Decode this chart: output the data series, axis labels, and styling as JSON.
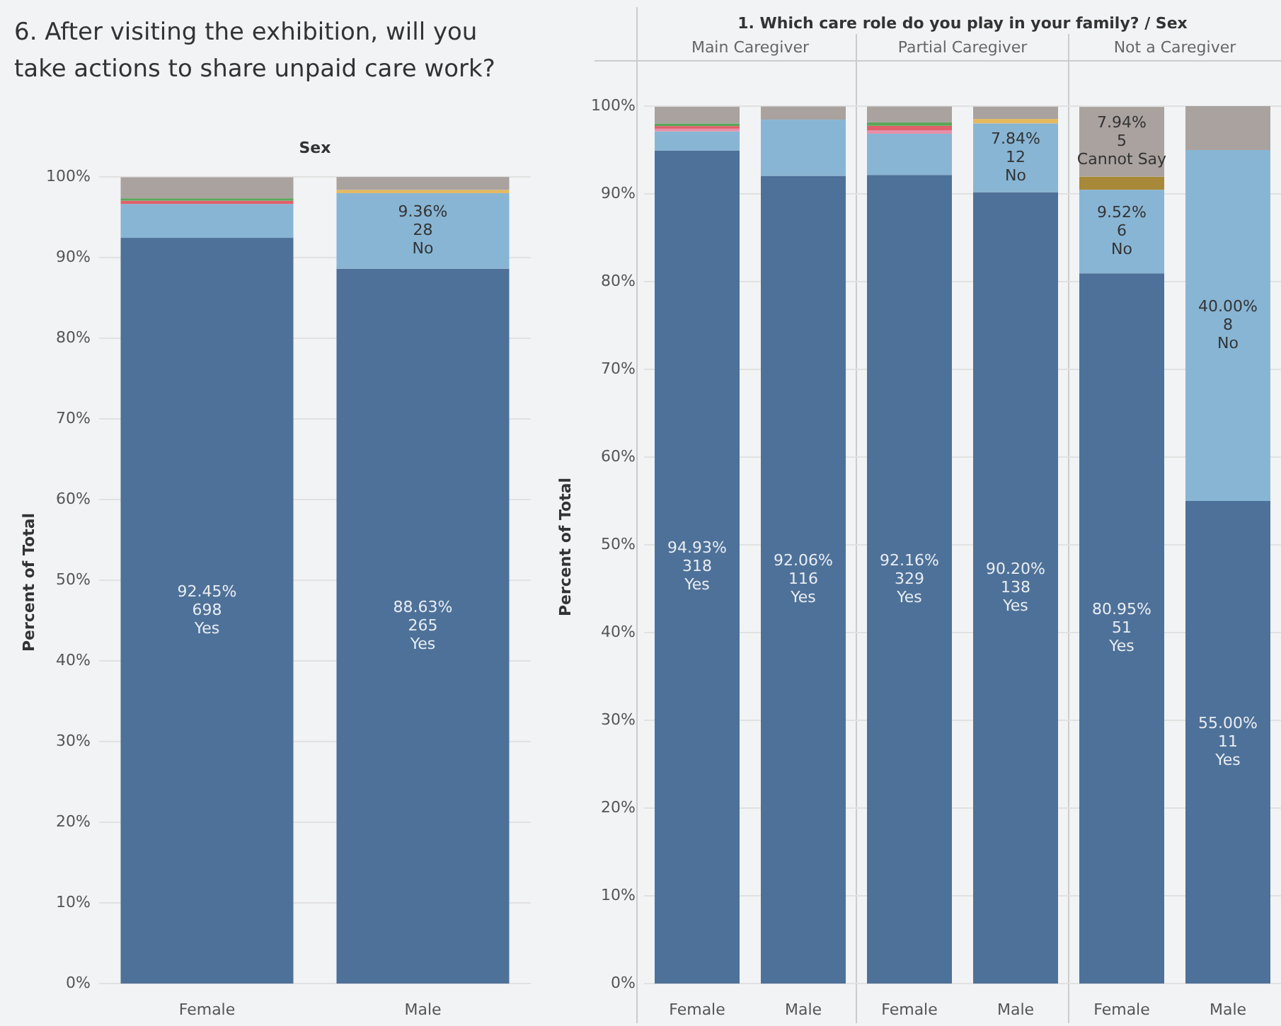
{
  "chart_data": [
    {
      "type": "bar",
      "title": "6. After visiting the exhibition, will you take actions to share unpaid care work?",
      "xlabel": "Sex",
      "ylabel": "Percent of Total",
      "categories": [
        "Female",
        "Male"
      ],
      "stacked": true,
      "grid": "y",
      "ylim": [
        0,
        100
      ],
      "yticks": [
        {
          "value": 0,
          "label": "0%"
        },
        {
          "value": 10,
          "label": "10%"
        },
        {
          "value": 20,
          "label": "20%"
        },
        {
          "value": 30,
          "label": "30%"
        },
        {
          "value": 40,
          "label": "40%"
        },
        {
          "value": 50,
          "label": "50%"
        },
        {
          "value": 60,
          "label": "60%"
        },
        {
          "value": 70,
          "label": "70%"
        },
        {
          "value": 80,
          "label": "80%"
        },
        {
          "value": 90,
          "label": "90%"
        },
        {
          "value": 100,
          "label": "100%"
        }
      ],
      "series": [
        {
          "name": "Yes",
          "color": "#4e7199",
          "values": [
            92.45,
            88.63
          ],
          "value_labels": [
            "92.45%\n698",
            "88.63%\n265"
          ]
        },
        {
          "name": "No",
          "color": "#88b5d4",
          "values": [
            4.2,
            9.36
          ],
          "value_labels": [
            null,
            "9.36%\n28"
          ]
        },
        {
          "color": "#e0606a",
          "values": [
            0.4,
            0
          ]
        },
        {
          "color": "#5aa65a",
          "values": [
            0.3,
            0
          ]
        },
        {
          "color": "#e5b95c",
          "values": [
            0,
            0.4
          ]
        },
        {
          "color": "#a9a29f",
          "values": [
            2.6,
            1.6
          ]
        }
      ]
    },
    {
      "type": "bar",
      "xlabel": "1. Which care role do you play in your family? / Sex",
      "ylabel": "Percent of Total",
      "annotations": [
        "Main Caregiver",
        "Partial Caregiver",
        "Not a Caregiver"
      ],
      "categories": [
        "Female",
        "Male",
        "Female",
        "Male",
        "Female",
        "Male"
      ],
      "stacked": true,
      "grid": "y",
      "ylim": [
        0,
        100
      ],
      "yticks": [
        {
          "value": 0,
          "label": "0%"
        },
        {
          "value": 10,
          "label": "10%"
        },
        {
          "value": 20,
          "label": "20%"
        },
        {
          "value": 30,
          "label": "30%"
        },
        {
          "value": 40,
          "label": "40%"
        },
        {
          "value": 50,
          "label": "50%"
        },
        {
          "value": 60,
          "label": "60%"
        },
        {
          "value": 70,
          "label": "70%"
        },
        {
          "value": 80,
          "label": "80%"
        },
        {
          "value": 90,
          "label": "90%"
        },
        {
          "value": 100,
          "label": "100%"
        }
      ],
      "series": [
        {
          "name": "Yes",
          "color": "#4e7199",
          "values": [
            94.93,
            92.06,
            92.16,
            90.2,
            80.95,
            55.0
          ],
          "value_labels": [
            "94.93%\n318",
            "92.06%\n116",
            "92.16%\n329",
            "90.20%\n138",
            "80.95%\n51",
            "55.00%\n11"
          ]
        },
        {
          "name": "No",
          "color": "#88b5d4",
          "values": [
            2.2,
            6.4,
            4.7,
            7.84,
            9.52,
            40.0
          ],
          "value_labels": [
            null,
            null,
            null,
            "7.84%\n12",
            "9.52%\n6",
            "40.00%\n8"
          ]
        },
        {
          "color": "#e88ea8",
          "values": [
            0.3,
            0,
            0.4,
            0,
            0,
            0
          ]
        },
        {
          "color": "#e0606a",
          "values": [
            0.3,
            0,
            0.5,
            0,
            0,
            0
          ]
        },
        {
          "color": "#5aa65a",
          "values": [
            0.3,
            0,
            0.4,
            0,
            0,
            0
          ]
        },
        {
          "color": "#e5b95c",
          "values": [
            0,
            0,
            0,
            0.5,
            0,
            0
          ]
        },
        {
          "color": "#a8893a",
          "values": [
            0,
            0,
            0,
            0,
            1.5,
            0
          ]
        },
        {
          "name": "Cannot Say",
          "color": "#a9a29f",
          "values": [
            1.9,
            1.5,
            1.8,
            1.4,
            7.94,
            5.0
          ],
          "value_labels": [
            null,
            null,
            null,
            null,
            "7.94%\n5",
            null
          ]
        }
      ]
    }
  ]
}
